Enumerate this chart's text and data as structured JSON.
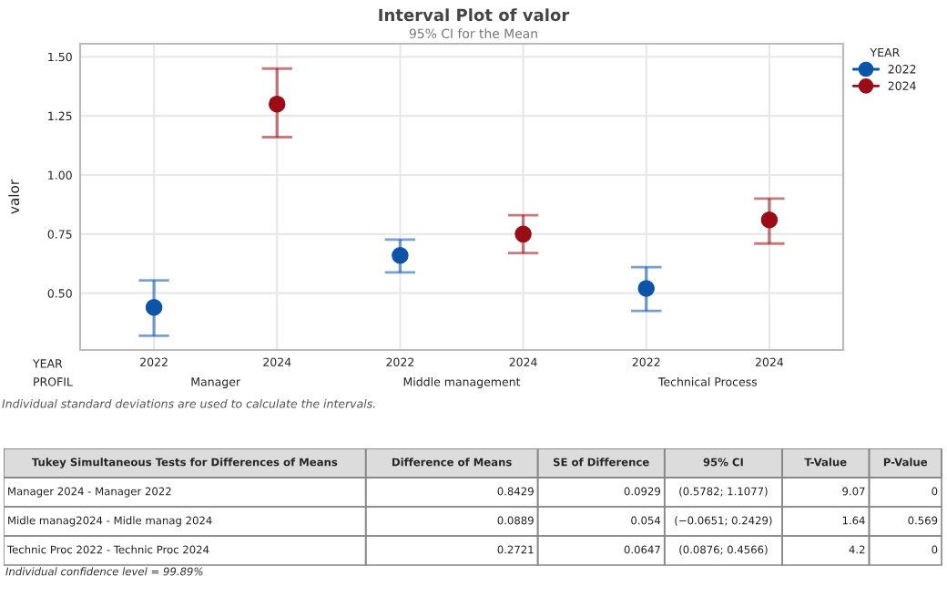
{
  "chart_data": [
    {
      "type": "scatter",
      "title": "Interval Plot of valor",
      "subtitle": "95% CI for the Mean",
      "ylabel": "valor",
      "legend_title": "YEAR",
      "categories": [
        "2022",
        "2024",
        "2022",
        "2024",
        "2022",
        "2024"
      ],
      "series": [
        {
          "name": "2022",
          "color": "#0b54a8",
          "values": [
            0.44,
            null,
            0.66,
            null,
            0.52,
            null
          ],
          "errors": [
            [
              0.32,
              0.554
            ],
            null,
            [
              0.588,
              0.727
            ],
            null,
            [
              0.425,
              0.61
            ],
            null
          ]
        },
        {
          "name": "2024",
          "color": "#9b0d14",
          "values": [
            null,
            1.3,
            null,
            0.75,
            null,
            0.81
          ],
          "errors": [
            null,
            [
              1.16,
              1.45
            ],
            null,
            [
              0.67,
              0.83
            ],
            null,
            [
              0.71,
              0.9
            ]
          ]
        }
      ],
      "ylim": [
        0.26,
        1.555
      ],
      "yticks": [
        {
          "value": 0.5,
          "label": "0.50"
        },
        {
          "value": 0.75,
          "label": "0.75"
        },
        {
          "value": 1.0,
          "label": "1.00"
        },
        {
          "value": 1.25,
          "label": "1.25"
        },
        {
          "value": 1.5,
          "label": "1.50"
        }
      ],
      "grid": true,
      "legend": "top right",
      "marker": "circle",
      "annotations": [
        "YEAR",
        "PROFIL",
        "Manager",
        "Middle management",
        "Technical Process",
        "Individual standard deviations are used to calculate the intervals."
      ]
    },
    {
      "type": "other",
      "categories": [
        "Tukey Simultaneous Tests for Differences of Means",
        "Difference of Means",
        "SE of Difference",
        "95% CI",
        "T-Value",
        "P-Value"
      ],
      "cell_labels": [
        [
          "Manager 2024 - Manager 2022",
          "0.8429",
          "0.0929",
          "(0.5782; 1.1077)",
          "9.07",
          "0"
        ],
        [
          "Midle manag2024 - Midle manag 2024",
          "0.0889",
          "0.054",
          "(−0.0651; 0.2429)",
          "1.64",
          "0.569"
        ],
        [
          "Technic Proc 2022 - Technic Proc 2024",
          "0.2721",
          "0.0647",
          "(0.0876; 0.4566)",
          "4.2",
          "0"
        ]
      ],
      "annotations": [
        "Individual confidence level = 99.89%"
      ]
    }
  ]
}
